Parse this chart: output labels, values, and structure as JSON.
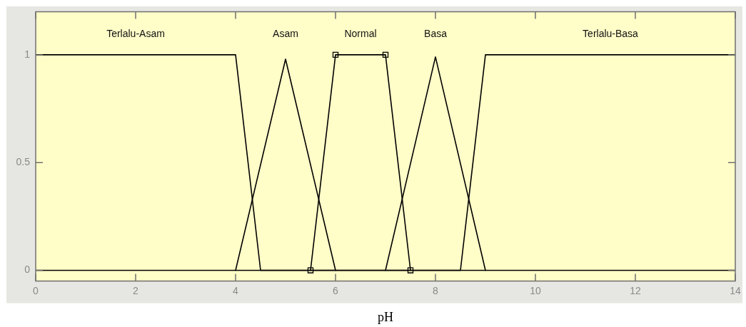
{
  "chart_data": {
    "type": "line",
    "xlabel": "pH",
    "xlim": [
      0,
      14
    ],
    "xticks": [
      0,
      2,
      4,
      6,
      8,
      10,
      12,
      14
    ],
    "ylim": [
      -0.05,
      1.2
    ],
    "yticks": [
      0,
      0.5,
      1
    ],
    "grid": false,
    "legend": false,
    "line_style": "solid",
    "series": [
      {
        "name": "Terlalu-Asam",
        "color": "#000000",
        "x": [
          0,
          4,
          4.5,
          14
        ],
        "values": [
          1,
          1,
          0,
          0
        ]
      },
      {
        "name": "Asam",
        "color": "#000000",
        "x": [
          4,
          5,
          6
        ],
        "values": [
          0,
          0.98,
          0
        ]
      },
      {
        "name": "Normal",
        "color": "#000000",
        "marker": "square",
        "x": [
          5.5,
          6,
          7,
          7.5
        ],
        "values": [
          0,
          1,
          1,
          0
        ]
      },
      {
        "name": "Basa",
        "color": "#000000",
        "x": [
          7,
          8,
          9
        ],
        "values": [
          0,
          0.99,
          0
        ]
      },
      {
        "name": "Terlalu-Basa",
        "color": "#000000",
        "x": [
          0,
          8.5,
          9,
          14
        ],
        "values": [
          0,
          0,
          1,
          1
        ]
      }
    ]
  }
}
